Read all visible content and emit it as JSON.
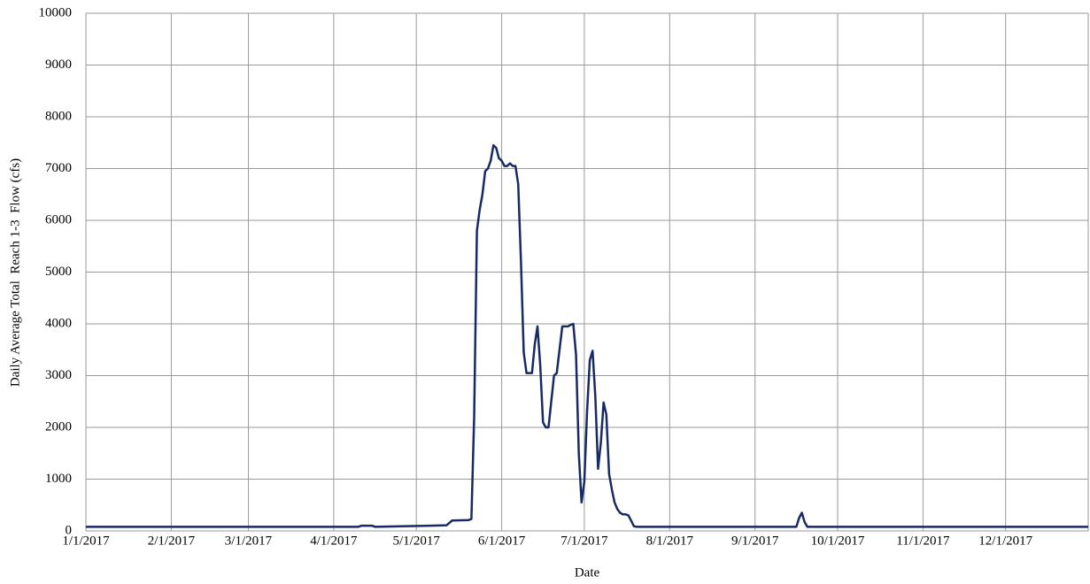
{
  "chart_data": {
    "type": "line",
    "x_label": "Date",
    "y_label": "Daily Average Total  Reach 1-3  Flow (cfs)",
    "x": [
      "1/1/2017",
      "4/10/2017",
      "4/11/2017",
      "4/15/2017",
      "4/16/2017",
      "5/6/2017",
      "5/12/2017",
      "5/14/2017",
      "5/20/2017",
      "5/21/2017",
      "5/22/2017",
      "5/23/2017",
      "5/24/2017",
      "5/25/2017",
      "5/26/2017",
      "5/27/2017",
      "5/28/2017",
      "5/29/2017",
      "5/30/2017",
      "5/31/2017",
      "6/1/2017",
      "6/2/2017",
      "6/3/2017",
      "6/4/2017",
      "6/5/2017",
      "6/6/2017",
      "6/7/2017",
      "6/8/2017",
      "6/9/2017",
      "6/10/2017",
      "6/11/2017",
      "6/12/2017",
      "6/13/2017",
      "6/14/2017",
      "6/15/2017",
      "6/16/2017",
      "6/17/2017",
      "6/18/2017",
      "6/19/2017",
      "6/20/2017",
      "6/21/2017",
      "6/22/2017",
      "6/23/2017",
      "6/24/2017",
      "6/25/2017",
      "6/26/2017",
      "6/27/2017",
      "6/28/2017",
      "6/29/2017",
      "6/30/2017",
      "7/1/2017",
      "7/2/2017",
      "7/3/2017",
      "7/4/2017",
      "7/5/2017",
      "7/6/2017",
      "7/7/2017",
      "7/8/2017",
      "7/9/2017",
      "7/10/2017",
      "7/11/2017",
      "7/12/2017",
      "7/13/2017",
      "7/14/2017",
      "7/15/2017",
      "7/16/2017",
      "7/17/2017",
      "7/18/2017",
      "7/19/2017",
      "7/20/2017",
      "9/16/2017",
      "9/17/2017",
      "9/18/2017",
      "9/19/2017",
      "9/20/2017",
      "12/31/2017"
    ],
    "values": [
      80,
      80,
      100,
      100,
      80,
      100,
      110,
      200,
      210,
      230,
      2200,
      5800,
      6200,
      6500,
      6950,
      7000,
      7150,
      7450,
      7400,
      7200,
      7150,
      7050,
      7050,
      7100,
      7050,
      7050,
      6700,
      5200,
      3450,
      3050,
      3050,
      3050,
      3600,
      3950,
      3200,
      2100,
      2000,
      2000,
      2500,
      3000,
      3050,
      3500,
      3950,
      3950,
      3950,
      3980,
      4000,
      3400,
      1500,
      550,
      950,
      2300,
      3300,
      3480,
      2600,
      1200,
      1700,
      2480,
      2250,
      1100,
      800,
      550,
      420,
      350,
      320,
      320,
      300,
      200,
      90,
      80,
      80,
      250,
      350,
      170,
      80,
      80
    ],
    "color": "#172a63",
    "xlim": [
      "1/1/2017",
      "12/31/2017"
    ],
    "xticks": [
      "1/1/2017",
      "2/1/2017",
      "3/1/2017",
      "4/1/2017",
      "5/1/2017",
      "6/1/2017",
      "7/1/2017",
      "8/1/2017",
      "9/1/2017",
      "10/1/2017",
      "11/1/2017",
      "12/1/2017"
    ],
    "ylim": [
      0,
      10000
    ],
    "yticks": [
      0,
      1000,
      2000,
      3000,
      4000,
      5000,
      6000,
      7000,
      8000,
      9000,
      10000
    ],
    "grid": true
  }
}
